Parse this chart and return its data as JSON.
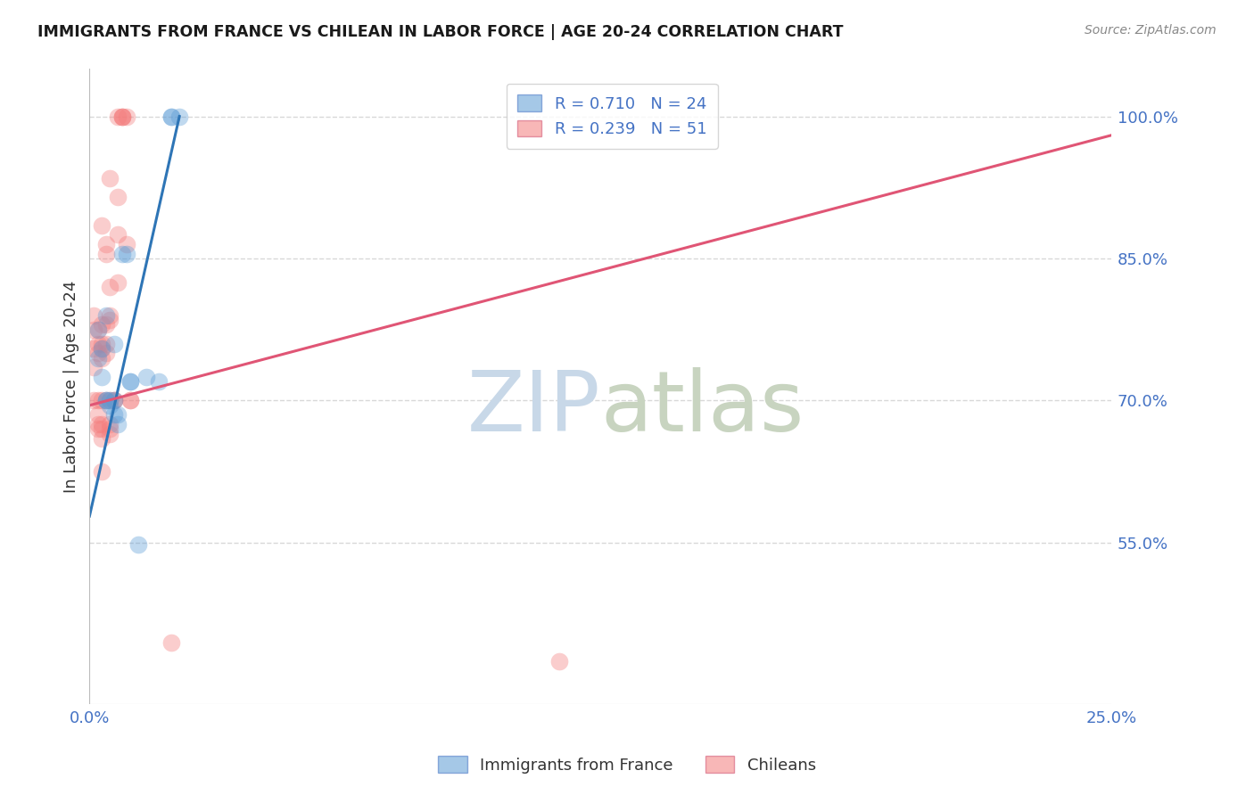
{
  "title": "IMMIGRANTS FROM FRANCE VS CHILEAN IN LABOR FORCE | AGE 20-24 CORRELATION CHART",
  "source": "Source: ZipAtlas.com",
  "ylabel": "In Labor Force | Age 20-24",
  "xlim": [
    0.0,
    0.25
  ],
  "ylim": [
    0.38,
    1.05
  ],
  "xtick_pos": [
    0.0,
    0.05,
    0.1,
    0.15,
    0.2,
    0.25
  ],
  "xtick_labels": [
    "0.0%",
    "",
    "",
    "",
    "",
    "25.0%"
  ],
  "ytick_values": [
    0.55,
    0.7,
    0.85,
    1.0
  ],
  "ytick_labels": [
    "55.0%",
    "70.0%",
    "85.0%",
    "100.0%"
  ],
  "blue_color": "#5B9BD5",
  "pink_color": "#F47C7C",
  "blue_R": 0.71,
  "blue_N": 24,
  "pink_R": 0.239,
  "pink_N": 51,
  "blue_points": [
    [
      0.002,
      0.775
    ],
    [
      0.002,
      0.745
    ],
    [
      0.003,
      0.755
    ],
    [
      0.003,
      0.725
    ],
    [
      0.004,
      0.79
    ],
    [
      0.004,
      0.7
    ],
    [
      0.004,
      0.7
    ],
    [
      0.005,
      0.7
    ],
    [
      0.005,
      0.695
    ],
    [
      0.006,
      0.7
    ],
    [
      0.006,
      0.76
    ],
    [
      0.006,
      0.685
    ],
    [
      0.007,
      0.675
    ],
    [
      0.007,
      0.685
    ],
    [
      0.008,
      0.855
    ],
    [
      0.009,
      0.855
    ],
    [
      0.01,
      0.72
    ],
    [
      0.01,
      0.72
    ],
    [
      0.012,
      0.548
    ],
    [
      0.014,
      0.725
    ],
    [
      0.017,
      0.72
    ],
    [
      0.02,
      1.0
    ],
    [
      0.02,
      1.0
    ],
    [
      0.022,
      1.0
    ]
  ],
  "pink_points": [
    [
      0.001,
      0.79
    ],
    [
      0.001,
      0.775
    ],
    [
      0.001,
      0.735
    ],
    [
      0.001,
      0.755
    ],
    [
      0.001,
      0.7
    ],
    [
      0.002,
      0.775
    ],
    [
      0.002,
      0.76
    ],
    [
      0.002,
      0.75
    ],
    [
      0.002,
      0.7
    ],
    [
      0.002,
      0.685
    ],
    [
      0.002,
      0.675
    ],
    [
      0.002,
      0.67
    ],
    [
      0.003,
      0.885
    ],
    [
      0.003,
      0.78
    ],
    [
      0.003,
      0.76
    ],
    [
      0.003,
      0.755
    ],
    [
      0.003,
      0.745
    ],
    [
      0.003,
      0.7
    ],
    [
      0.003,
      0.675
    ],
    [
      0.003,
      0.67
    ],
    [
      0.003,
      0.66
    ],
    [
      0.003,
      0.625
    ],
    [
      0.004,
      0.865
    ],
    [
      0.004,
      0.855
    ],
    [
      0.004,
      0.78
    ],
    [
      0.004,
      0.76
    ],
    [
      0.004,
      0.75
    ],
    [
      0.004,
      0.7
    ],
    [
      0.005,
      0.935
    ],
    [
      0.005,
      0.82
    ],
    [
      0.005,
      0.79
    ],
    [
      0.005,
      0.785
    ],
    [
      0.005,
      0.7
    ],
    [
      0.005,
      0.675
    ],
    [
      0.005,
      0.67
    ],
    [
      0.005,
      0.665
    ],
    [
      0.006,
      0.7
    ],
    [
      0.006,
      0.7
    ],
    [
      0.007,
      1.0
    ],
    [
      0.007,
      0.915
    ],
    [
      0.007,
      0.875
    ],
    [
      0.007,
      0.825
    ],
    [
      0.008,
      1.0
    ],
    [
      0.008,
      1.0
    ],
    [
      0.008,
      1.0
    ],
    [
      0.009,
      0.865
    ],
    [
      0.009,
      1.0
    ],
    [
      0.01,
      0.7
    ],
    [
      0.01,
      0.7
    ],
    [
      0.02,
      0.445
    ],
    [
      0.115,
      0.425
    ]
  ],
  "blue_line": {
    "x0": 0.0,
    "x1": 0.022,
    "y0": 0.578,
    "y1": 1.0
  },
  "pink_line": {
    "x0": 0.0,
    "x1": 0.25,
    "y0": 0.695,
    "y1": 0.98
  },
  "grid_color": "#D8D8D8",
  "watermark_zip": "ZIP",
  "watermark_atlas": "atlas",
  "watermark_color": "#C8D8E8",
  "background_color": "#FFFFFF",
  "legend_label_color": "#4472C4",
  "title_color": "#1A1A1A",
  "source_color": "#888888",
  "ylabel_color": "#333333",
  "bottom_legend_color": "#333333"
}
